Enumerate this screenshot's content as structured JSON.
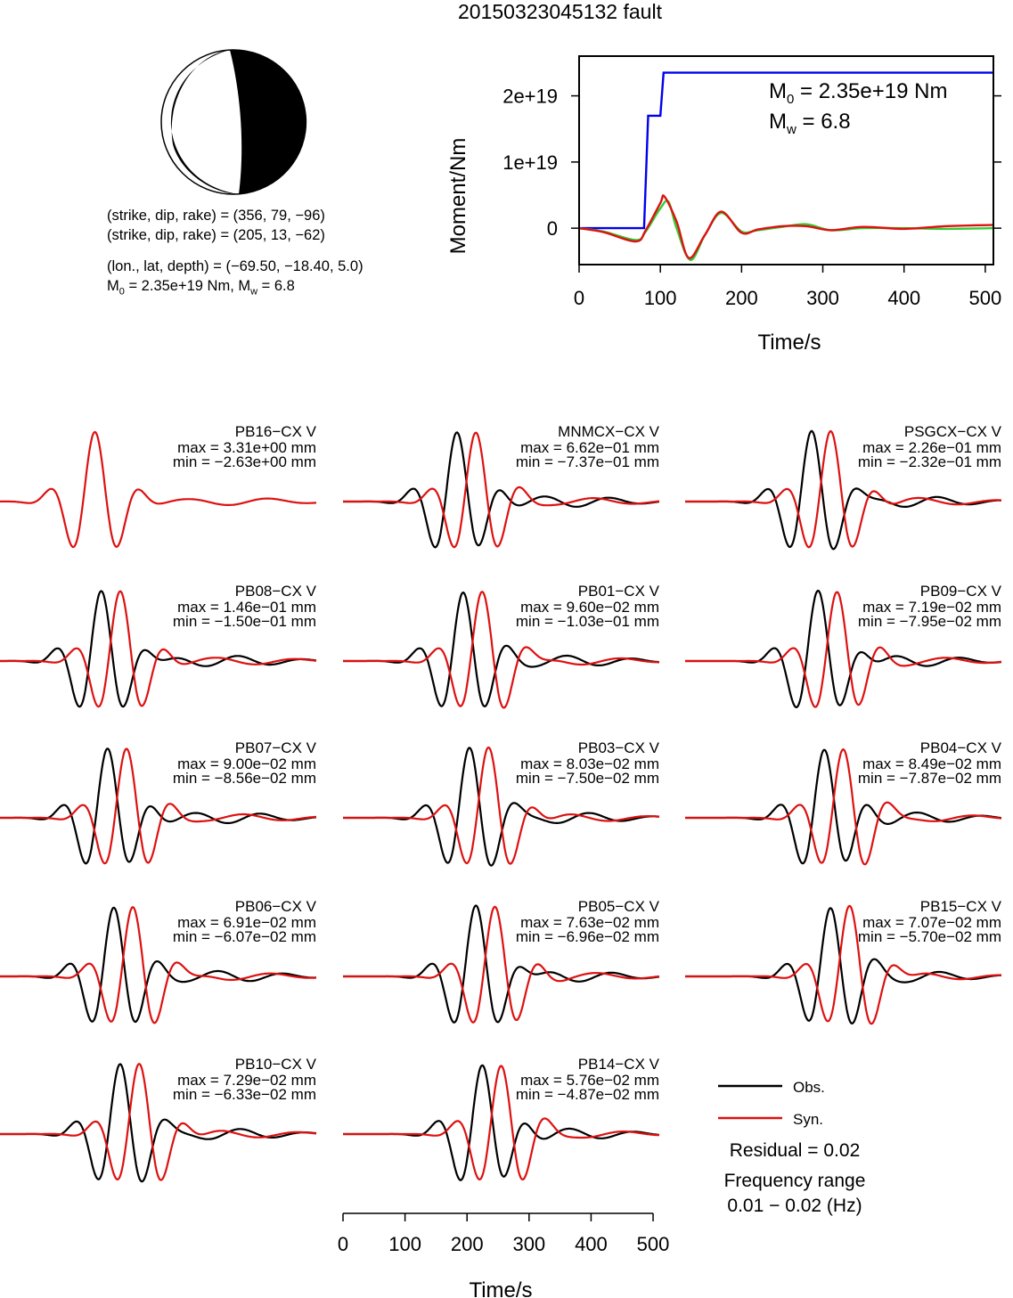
{
  "figure": {
    "title": "20150323045132 fault"
  },
  "mechanism": {
    "plane1": "(strike, dip, rake) = (356, 79, −96)",
    "plane2": "(strike, dip, rake) = (205, 13, −62)",
    "location": "(lon., lat, depth) = (−69.50, −18.40, 5.0)",
    "moment_prefix": "M",
    "moment_sub": "0",
    "moment_mid": " = 2.35e+19 Nm, M",
    "moment_sub2": "w",
    "moment_suffix": " = 6.8"
  },
  "moment_plot": {
    "annot_m0_base": "M",
    "annot_m0_sub": "0",
    "annot_m0_val": " = 2.35e+19 Nm",
    "annot_mw_base": "M",
    "annot_mw_sub": "w",
    "annot_mw_val": " = 6.8"
  },
  "legend": {
    "obs": "Obs.",
    "syn": "Syn.",
    "residual": "Residual = 0.02",
    "freq_title": "Frequency range",
    "freq_value": "0.01 − 0.02 (Hz)"
  },
  "colors": {
    "obs": "#000000",
    "syn": "#dd1111",
    "cumulative": "#0000ee",
    "rate_green": "#33cc33",
    "rate_red": "#dd1111"
  },
  "chart_data": [
    {
      "type": "line",
      "title": "",
      "xlabel": "Time/s",
      "ylabel": "Moment/Nm",
      "xlim": [
        0,
        510
      ],
      "ylim": [
        -5.5e+18,
        2.6e+19
      ],
      "xticks": [
        "0",
        "100",
        "200",
        "300",
        "400",
        "500"
      ],
      "yticks": [
        "0",
        "1e+19",
        "2e+19"
      ],
      "series": [
        {
          "name": "",
          "color": "#0000ee",
          "x": [
            0,
            80,
            85,
            92,
            100,
            104,
            510
          ],
          "y": [
            0,
            0,
            1.7e+19,
            1.7e+19,
            1.7e+19,
            2.35e+19,
            2.35e+19
          ]
        },
        {
          "name": "",
          "color": "#33cc33",
          "x": [
            0,
            30,
            70,
            82,
            100,
            110,
            120,
            137,
            155,
            175,
            200,
            220,
            250,
            280,
            310,
            350,
            400,
            450,
            510
          ],
          "y": [
            0,
            -5e+17,
            -1.8e+18,
            -5e+17,
            3e+18,
            4e+18,
            0,
            -4.8e+18,
            -1e+18,
            2.3e+18,
            -5e+17,
            -3e+17,
            2e+17,
            6e+17,
            -3e+17,
            0,
            0,
            -1e+17,
            0
          ]
        },
        {
          "name": "",
          "color": "#dd1111",
          "x": [
            0,
            30,
            70,
            82,
            100,
            105,
            120,
            135,
            155,
            175,
            200,
            220,
            250,
            280,
            310,
            350,
            400,
            450,
            510
          ],
          "y": [
            0,
            -6e+17,
            -2e+18,
            -3e+17,
            3.8e+18,
            4.8e+18,
            1e+18,
            -4.5e+18,
            -1e+18,
            2.5e+18,
            -7e+17,
            -2e+17,
            3e+17,
            3e+17,
            -3e+17,
            2e+17,
            -1e+17,
            3e+17,
            5e+17
          ]
        }
      ]
    },
    {
      "type": "line",
      "title": "",
      "xlabel": "Time/s",
      "xlim": [
        0,
        510
      ],
      "xticks": [
        "0",
        "100",
        "200",
        "300",
        "400",
        "500"
      ],
      "stations": [
        {
          "label": "PB16−CX V",
          "max": "max = 3.31e+00 mm",
          "min": "min = −2.63e+00 mm"
        },
        {
          "label": "MNMCX−CX V",
          "max": "max = 6.62e−01 mm",
          "min": "min = −7.37e−01 mm"
        },
        {
          "label": "PSGCX−CX V",
          "max": "max = 2.26e−01 mm",
          "min": "min = −2.32e−01 mm"
        },
        {
          "label": "PB08−CX V",
          "max": "max = 1.46e−01 mm",
          "min": "min = −1.50e−01 mm"
        },
        {
          "label": "PB01−CX V",
          "max": "max = 9.60e−02 mm",
          "min": "min = −1.03e−01 mm"
        },
        {
          "label": "PB09−CX V",
          "max": "max = 7.19e−02 mm",
          "min": "min = −7.95e−02 mm"
        },
        {
          "label": "PB07−CX V",
          "max": "max = 9.00e−02 mm",
          "min": "min = −8.56e−02 mm"
        },
        {
          "label": "PB03−CX V",
          "max": "max = 8.03e−02 mm",
          "min": "min = −7.50e−02 mm"
        },
        {
          "label": "PB04−CX V",
          "max": "max = 8.49e−02 mm",
          "min": "min = −7.87e−02 mm"
        },
        {
          "label": "PB06−CX V",
          "max": "max = 6.91e−02 mm",
          "min": "min = −6.07e−02 mm"
        },
        {
          "label": "PB05−CX V",
          "max": "max = 7.63e−02 mm",
          "min": "min = −6.96e−02 mm"
        },
        {
          "label": "PB15−CX V",
          "max": "max = 7.07e−02 mm",
          "min": "min = −5.70e−02 mm"
        },
        {
          "label": "PB10−CX V",
          "max": "max = 7.29e−02 mm",
          "min": "min = −6.33e−02 mm"
        },
        {
          "label": "PB14−CX V",
          "max": "max = 5.76e−02 mm",
          "min": "min = −4.87e−02 mm"
        }
      ]
    }
  ]
}
